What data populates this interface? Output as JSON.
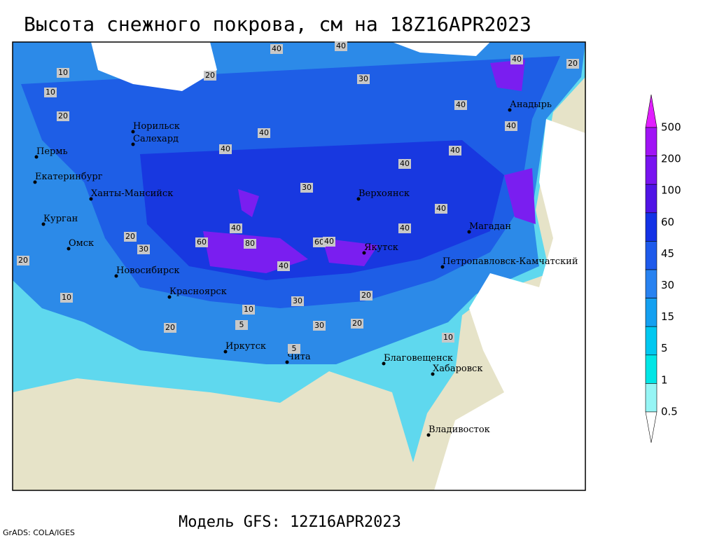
{
  "header": {
    "title": "Высота снежного покрова, см на 18Z16APR2023"
  },
  "footer": {
    "model": "Модель GFS: 12Z16APR2023",
    "credit": "GrADS: COLA/IGES"
  },
  "map": {
    "cities": [
      "Норильск",
      "Салехард",
      "Пермь",
      "Екатеринбург",
      "Ханты-Мансийск",
      "Курган",
      "Омск",
      "Новосибирск",
      "Красноярск",
      "Иркутск",
      "Чита",
      "Благовещенск",
      "Хабаровск",
      "Владивосток",
      "Якутск",
      "Верхоянск",
      "Магадан",
      "Петропавловск-Камчатский",
      "Анадырь"
    ],
    "contour_labels": [
      "40",
      "40",
      "30",
      "10",
      "10",
      "20",
      "40",
      "40",
      "30",
      "40",
      "40",
      "40",
      "40",
      "40",
      "60",
      "80",
      "60",
      "40",
      "40",
      "20",
      "30",
      "20",
      "10",
      "10",
      "5",
      "30",
      "30",
      "20",
      "20",
      "10",
      "20",
      "5",
      "40",
      "20",
      "40",
      "40",
      "20"
    ]
  },
  "legend": {
    "levels": [
      "500",
      "200",
      "100",
      "60",
      "45",
      "30",
      "15",
      "5",
      "1",
      "0.5"
    ]
  }
}
